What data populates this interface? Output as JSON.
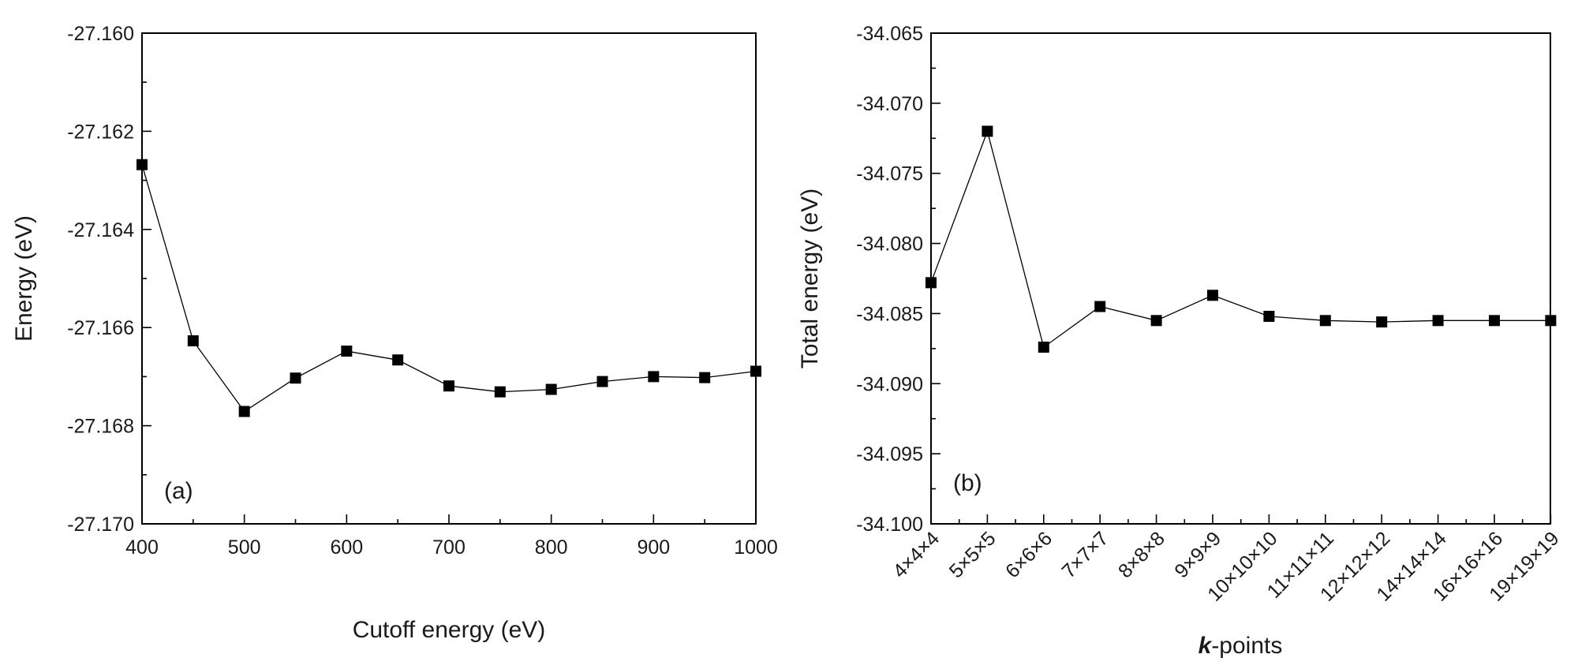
{
  "chart_data": [
    {
      "id": "a",
      "type": "line",
      "panel_label": "(a)",
      "title": "",
      "xlabel": "Cutoff energy (eV)",
      "ylabel": "Energy (eV)",
      "x": [
        400,
        450,
        500,
        550,
        600,
        650,
        700,
        750,
        800,
        850,
        900,
        950,
        1000
      ],
      "y": [
        -27.16268,
        -27.16627,
        -27.16771,
        -27.16703,
        -27.16648,
        -27.16666,
        -27.16719,
        -27.16731,
        -27.16726,
        -27.1671,
        -27.167,
        -27.16702,
        -27.16689
      ],
      "xlim": [
        400,
        1000
      ],
      "ylim": [
        -27.17,
        -27.16
      ],
      "xticks": [
        400,
        500,
        600,
        700,
        800,
        900,
        1000
      ],
      "xtick_labels": [
        "400",
        "500",
        "600",
        "700",
        "800",
        "900",
        "1000"
      ],
      "yticks": [
        -27.17,
        -27.168,
        -27.166,
        -27.164,
        -27.162,
        -27.16
      ],
      "ytick_labels": [
        "-27.170",
        "-27.168",
        "-27.166",
        "-27.164",
        "-27.162",
        "-27.160"
      ],
      "marker": "square",
      "grid": false
    },
    {
      "id": "b",
      "type": "line",
      "panel_label": "(b)",
      "title": "",
      "xlabel_bold": "k",
      "xlabel_rest": "-points",
      "ylabel": "Total energy (eV)",
      "categories": [
        "4×4×4",
        "5×5×5",
        "6×6×6",
        "7×7×7",
        "8×8×8",
        "9×9×9",
        "10×10×10",
        "11×11×11",
        "12×12×12",
        "14×14×14",
        "16×16×16",
        "19×19×19"
      ],
      "y": [
        -34.0828,
        -34.072,
        -34.0874,
        -34.0845,
        -34.0855,
        -34.0837,
        -34.0852,
        -34.0855,
        -34.0856,
        -34.0855,
        -34.0855,
        -34.0855
      ],
      "ylim": [
        -34.1,
        -34.065
      ],
      "yticks": [
        -34.1,
        -34.095,
        -34.09,
        -34.085,
        -34.08,
        -34.075,
        -34.07,
        -34.065
      ],
      "ytick_labels": [
        "-34.100",
        "-34.095",
        "-34.090",
        "-34.085",
        "-34.080",
        "-34.075",
        "-34.070",
        "-34.065"
      ],
      "marker": "square",
      "grid": false
    }
  ]
}
